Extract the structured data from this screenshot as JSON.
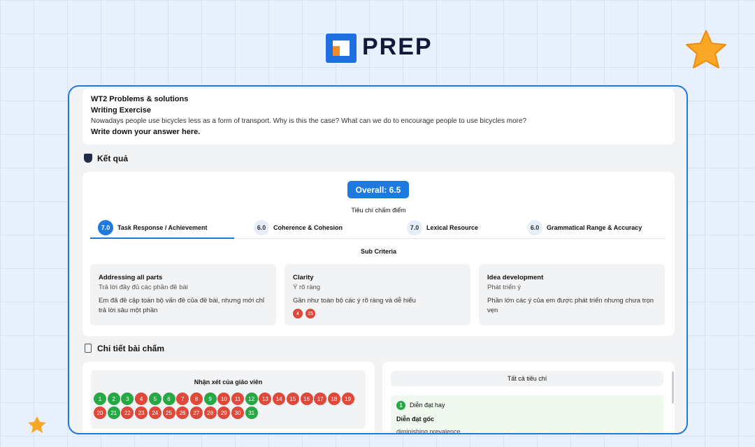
{
  "logo": "PREP",
  "prompt": {
    "title": "WT2 Problems & solutions",
    "subtitle": "Writing Exercise",
    "question": "Nowadays people use bicycles less as a form of transport. Why is this the case? What can we do to encourage people to use bicycles more?",
    "instruction": "Write down your answer here."
  },
  "results": {
    "heading": "Kết quả",
    "overall": "Overall: 6.5",
    "criteria_heading": "Tiêu chí chấm điểm",
    "criteria": [
      {
        "score": "7.0",
        "name": "Task Response / Achievement"
      },
      {
        "score": "6.0",
        "name": "Coherence & Cohesion"
      },
      {
        "score": "7.0",
        "name": "Lexical Resource"
      },
      {
        "score": "6.0",
        "name": "Grammatical Range & Accuracy"
      }
    ],
    "sub_heading": "Sub Criteria",
    "sub_criteria": [
      {
        "title": "Addressing all parts",
        "subtitle": "Trả lời đầy đủ các phần đề bài",
        "description": "Em đã đề cập toàn bộ vấn đề của đề bài, nhưng mới chỉ trả lời sâu một phần",
        "badges": []
      },
      {
        "title": "Clarity",
        "subtitle": "Ý rõ ràng",
        "description": "Gần như toàn bộ các ý rõ ràng và dễ hiểu",
        "badges": [
          4,
          15
        ]
      },
      {
        "title": "Idea development",
        "subtitle": "Phát triển ý",
        "description": "Phần lớn các ý của em được phát triển nhưng chưa trọn vẹn",
        "badges": []
      }
    ]
  },
  "details": {
    "heading": "Chi tiết bài chấm",
    "teacher_heading": "Nhận xét của giáo viên",
    "comments": [
      {
        "n": 1,
        "status": "good"
      },
      {
        "n": 2,
        "status": "good"
      },
      {
        "n": 3,
        "status": "good"
      },
      {
        "n": 4,
        "status": "bad"
      },
      {
        "n": 5,
        "status": "good"
      },
      {
        "n": 6,
        "status": "good"
      },
      {
        "n": 7,
        "status": "bad"
      },
      {
        "n": 8,
        "status": "bad"
      },
      {
        "n": 9,
        "status": "good"
      },
      {
        "n": 10,
        "status": "bad"
      },
      {
        "n": 11,
        "status": "bad"
      },
      {
        "n": 12,
        "status": "good"
      },
      {
        "n": 13,
        "status": "bad"
      },
      {
        "n": 14,
        "status": "bad"
      },
      {
        "n": 15,
        "status": "bad"
      },
      {
        "n": 16,
        "status": "bad"
      },
      {
        "n": 17,
        "status": "bad"
      },
      {
        "n": 18,
        "status": "bad"
      },
      {
        "n": 19,
        "status": "bad"
      },
      {
        "n": 20,
        "status": "bad"
      },
      {
        "n": 21,
        "status": "good"
      },
      {
        "n": 22,
        "status": "bad"
      },
      {
        "n": 23,
        "status": "bad"
      },
      {
        "n": 24,
        "status": "bad"
      },
      {
        "n": 25,
        "status": "bad"
      },
      {
        "n": 26,
        "status": "bad"
      },
      {
        "n": 27,
        "status": "bad"
      },
      {
        "n": 28,
        "status": "bad"
      },
      {
        "n": 29,
        "status": "bad"
      },
      {
        "n": 30,
        "status": "bad"
      },
      {
        "n": 31,
        "status": "good"
      }
    ],
    "all_criteria_heading": "Tất cả tiêu chí",
    "item": {
      "number": 1,
      "label": "Diễn đạt hay",
      "original_heading": "Diễn đạt gốc",
      "original_text": "diminishing prevalence"
    }
  }
}
